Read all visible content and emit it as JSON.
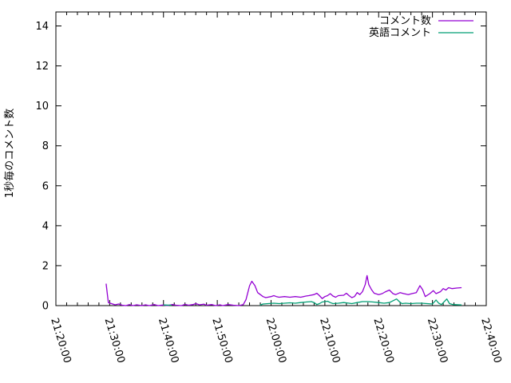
{
  "colors": {
    "background": "#ffffff",
    "axis": "#000000",
    "text": "#000000",
    "series1": "#9400d3",
    "series2": "#009e73"
  },
  "chart_data": {
    "type": "line",
    "title": "",
    "xlabel": "",
    "ylabel": "1秒毎のコメント数",
    "grid": false,
    "legend_position": "top-right-inside",
    "x_axis": {
      "start": "21:20:00",
      "end": "22:40:00",
      "major_tick_interval_seconds": 600,
      "minor_tick_interval_seconds": 120,
      "tick_labels": [
        "21:20:00",
        "21:30:00",
        "21:40:00",
        "21:50:00",
        "22:00:00",
        "22:10:00",
        "22:20:00",
        "22:30:00",
        "22:40:00"
      ],
      "label_rotation_deg": 73
    },
    "y_axis": {
      "min": 0,
      "max": 14.7,
      "tick_labels": [
        "0",
        "2",
        "4",
        "6",
        "8",
        "10",
        "12",
        "14"
      ]
    },
    "series": [
      {
        "name": "コメント数",
        "color": "#9400d3",
        "points": [
          [
            "21:29:20",
            1.1
          ],
          [
            "21:29:45",
            0.15
          ],
          [
            "21:30:20",
            0.1
          ],
          [
            "21:31:00",
            0.04
          ],
          [
            "21:31:40",
            0.08
          ],
          [
            "21:32:20",
            0.02
          ],
          [
            "21:33:00",
            0.0
          ],
          [
            "21:33:40",
            0.05
          ],
          [
            "21:34:20",
            0.0
          ],
          [
            "21:35:00",
            0.04
          ],
          [
            "21:36:00",
            0.0
          ],
          [
            "21:36:40",
            0.04
          ],
          [
            "21:37:20",
            0.0
          ],
          [
            "21:38:20",
            0.05
          ],
          [
            "21:39:00",
            0.0
          ],
          [
            "21:40:00",
            0.03
          ],
          [
            "21:40:40",
            0.0
          ],
          [
            "21:41:40",
            0.05
          ],
          [
            "21:42:20",
            0.02
          ],
          [
            "21:43:20",
            0.0
          ],
          [
            "21:44:00",
            0.06
          ],
          [
            "21:44:40",
            0.02
          ],
          [
            "21:45:30",
            0.05
          ],
          [
            "21:46:00",
            0.1
          ],
          [
            "21:46:40",
            0.04
          ],
          [
            "21:47:30",
            0.07
          ],
          [
            "21:48:00",
            0.02
          ],
          [
            "21:49:00",
            0.05
          ],
          [
            "21:49:40",
            0.0
          ],
          [
            "21:50:30",
            0.04
          ],
          [
            "21:51:00",
            0.0
          ],
          [
            "21:52:00",
            0.05
          ],
          [
            "21:53:00",
            0.02
          ],
          [
            "21:54:00",
            0.0
          ],
          [
            "21:54:50",
            0.05
          ],
          [
            "21:55:20",
            0.3
          ],
          [
            "21:56:00",
            1.0
          ],
          [
            "21:56:25",
            1.22
          ],
          [
            "21:57:00",
            1.0
          ],
          [
            "21:57:30",
            0.65
          ],
          [
            "21:58:30",
            0.45
          ],
          [
            "21:59:00",
            0.4
          ],
          [
            "22:00:00",
            0.45
          ],
          [
            "22:00:30",
            0.5
          ],
          [
            "22:01:00",
            0.45
          ],
          [
            "22:01:30",
            0.42
          ],
          [
            "22:02:30",
            0.45
          ],
          [
            "22:03:30",
            0.42
          ],
          [
            "22:04:30",
            0.45
          ],
          [
            "22:05:30",
            0.42
          ],
          [
            "22:06:30",
            0.48
          ],
          [
            "22:07:00",
            0.5
          ],
          [
            "22:08:00",
            0.55
          ],
          [
            "22:08:30",
            0.62
          ],
          [
            "22:09:00",
            0.5
          ],
          [
            "22:09:30",
            0.35
          ],
          [
            "22:10:00",
            0.45
          ],
          [
            "22:10:30",
            0.5
          ],
          [
            "22:11:00",
            0.6
          ],
          [
            "22:11:30",
            0.48
          ],
          [
            "22:12:00",
            0.42
          ],
          [
            "22:12:30",
            0.5
          ],
          [
            "22:13:30",
            0.52
          ],
          [
            "22:14:00",
            0.62
          ],
          [
            "22:14:30",
            0.5
          ],
          [
            "22:15:00",
            0.4
          ],
          [
            "22:15:30",
            0.45
          ],
          [
            "22:16:00",
            0.65
          ],
          [
            "22:16:30",
            0.55
          ],
          [
            "22:17:00",
            0.7
          ],
          [
            "22:17:30",
            1.05
          ],
          [
            "22:17:50",
            1.5
          ],
          [
            "22:18:10",
            1.05
          ],
          [
            "22:18:40",
            0.8
          ],
          [
            "22:19:10",
            0.62
          ],
          [
            "22:20:00",
            0.55
          ],
          [
            "22:20:40",
            0.6
          ],
          [
            "22:21:10",
            0.68
          ],
          [
            "22:22:00",
            0.78
          ],
          [
            "22:22:40",
            0.6
          ],
          [
            "22:23:10",
            0.55
          ],
          [
            "22:24:00",
            0.65
          ],
          [
            "22:24:40",
            0.6
          ],
          [
            "22:25:30",
            0.55
          ],
          [
            "22:26:10",
            0.6
          ],
          [
            "22:27:00",
            0.65
          ],
          [
            "22:27:40",
            1.0
          ],
          [
            "22:28:10",
            0.8
          ],
          [
            "22:28:40",
            0.45
          ],
          [
            "22:29:30",
            0.6
          ],
          [
            "22:30:10",
            0.75
          ],
          [
            "22:30:40",
            0.6
          ],
          [
            "22:31:30",
            0.7
          ],
          [
            "22:32:00",
            0.85
          ],
          [
            "22:32:30",
            0.78
          ],
          [
            "22:33:00",
            0.9
          ],
          [
            "22:33:40",
            0.85
          ],
          [
            "22:34:30",
            0.88
          ],
          [
            "22:35:25",
            0.9
          ]
        ]
      },
      {
        "name": "英語コメント",
        "color": "#009e73",
        "points": [
          [
            "21:40:00",
            0.03
          ],
          [
            "21:41:30",
            0.02
          ],
          [
            "21:42:00",
            null
          ],
          [
            "21:57:55",
            0.02
          ],
          [
            "21:58:30",
            0.08
          ],
          [
            "21:59:30",
            0.1
          ],
          [
            "22:00:30",
            0.12
          ],
          [
            "22:01:30",
            0.1
          ],
          [
            "22:02:30",
            0.12
          ],
          [
            "22:03:30",
            0.14
          ],
          [
            "22:04:30",
            0.12
          ],
          [
            "22:05:30",
            0.15
          ],
          [
            "22:06:30",
            0.18
          ],
          [
            "22:07:30",
            0.2
          ],
          [
            "22:08:00",
            0.15
          ],
          [
            "22:08:30",
            0.05
          ],
          [
            "22:09:00",
            0.1
          ],
          [
            "22:09:30",
            0.18
          ],
          [
            "22:10:30",
            0.22
          ],
          [
            "22:11:00",
            0.15
          ],
          [
            "22:11:30",
            0.1
          ],
          [
            "22:12:30",
            0.12
          ],
          [
            "22:13:30",
            0.15
          ],
          [
            "22:14:30",
            0.12
          ],
          [
            "22:15:00",
            0.1
          ],
          [
            "22:16:00",
            0.15
          ],
          [
            "22:17:00",
            0.2
          ],
          [
            "22:18:00",
            0.2
          ],
          [
            "22:19:00",
            0.18
          ],
          [
            "22:20:00",
            0.15
          ],
          [
            "22:21:00",
            0.12
          ],
          [
            "22:22:00",
            0.15
          ],
          [
            "22:23:20",
            0.33
          ],
          [
            "22:23:50",
            0.2
          ],
          [
            "22:24:20",
            0.1
          ],
          [
            "22:25:00",
            0.12
          ],
          [
            "22:26:00",
            0.1
          ],
          [
            "22:27:00",
            0.12
          ],
          [
            "22:28:00",
            0.12
          ],
          [
            "22:29:00",
            0.1
          ],
          [
            "22:30:00",
            0.08
          ],
          [
            "22:30:40",
            0.28
          ],
          [
            "22:31:10",
            0.12
          ],
          [
            "22:31:40",
            0.05
          ],
          [
            "22:32:40",
            0.33
          ],
          [
            "22:33:10",
            0.1
          ],
          [
            "22:33:50",
            0.05
          ],
          [
            "22:35:25",
            0.03
          ]
        ]
      }
    ]
  }
}
